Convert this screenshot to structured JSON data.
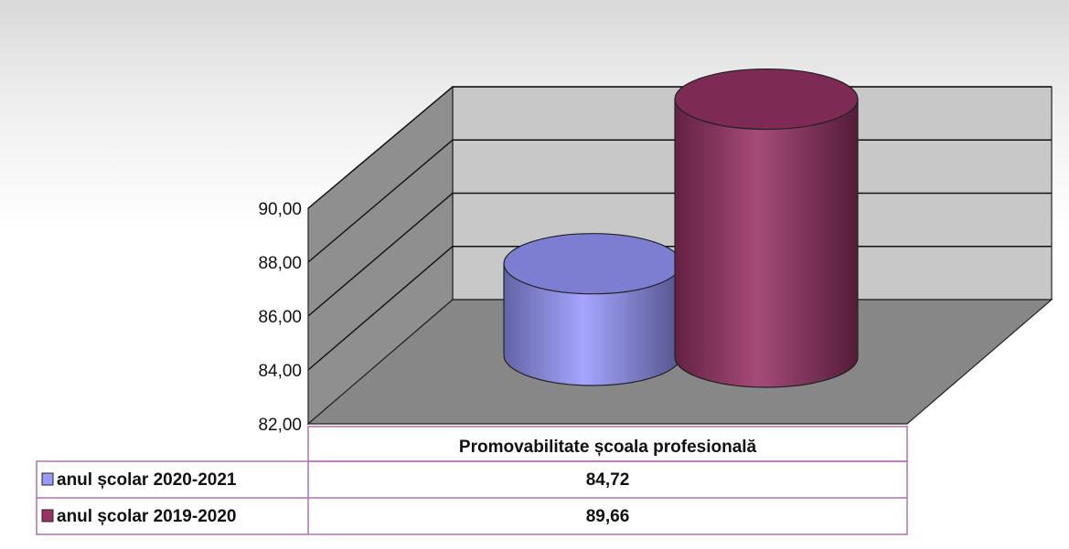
{
  "chart_data": {
    "type": "bar",
    "subtype": "3d-cylinder",
    "categories": [
      "Promovabilitate școala profesională"
    ],
    "series": [
      {
        "name": "anul școlar 2020-2021",
        "values": [
          84.72
        ],
        "color": "#9999ff"
      },
      {
        "name": "anul școlar 2019-2020",
        "values": [
          89.66
        ],
        "color": "#993366"
      }
    ],
    "y_ticks": [
      "82,00",
      "84,00",
      "86,00",
      "88,00",
      "90,00"
    ],
    "ylim": [
      82,
      90
    ],
    "grid": true,
    "legend": "data-table-bottom",
    "data_table": {
      "header": "Promovabilitate școala profesională",
      "rows": [
        {
          "label": "anul școlar 2020-2021",
          "value": "84,72"
        },
        {
          "label": "anul școlar 2019-2020",
          "value": "89,66"
        }
      ]
    },
    "colors": {
      "back_wall": "#c8c8c8",
      "side_wall": "#8f8f8f",
      "floor": "#878787",
      "table_border": "#b070b0"
    }
  }
}
